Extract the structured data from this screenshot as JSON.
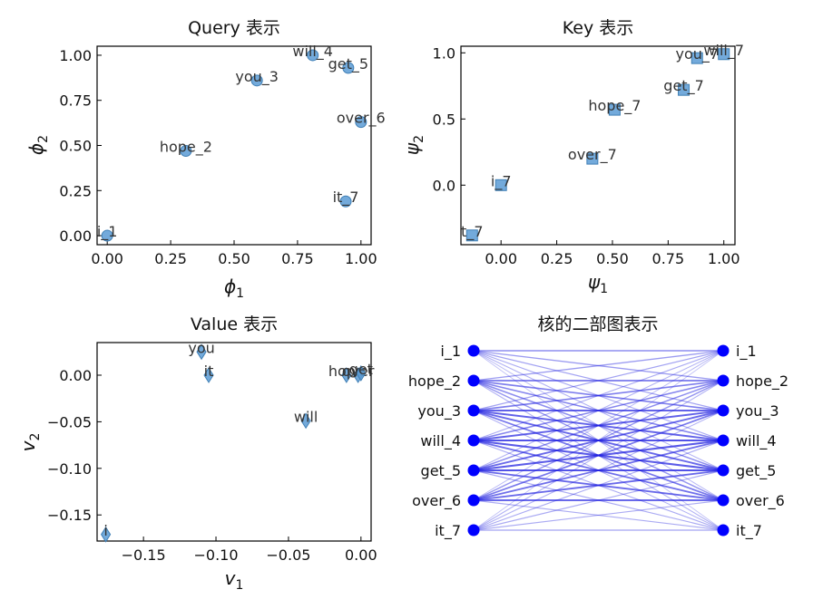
{
  "colors": {
    "marker": "#5b9bd5",
    "marker_edge": "#3f7fb5",
    "node": "#0000ff",
    "edge": "#1f1fe0"
  },
  "chart_data": [
    {
      "type": "scatter",
      "title": "Query 表示",
      "xlabel": "ϕ1",
      "ylabel": "ϕ2",
      "xlim": [
        -0.04,
        1.04
      ],
      "ylim": [
        -0.05,
        1.05
      ],
      "xticks": [
        "0.00",
        "0.25",
        "0.50",
        "0.75",
        "1.00"
      ],
      "xtick_values": [
        0,
        0.25,
        0.5,
        0.75,
        1.0
      ],
      "yticks": [
        "0.00",
        "0.25",
        "0.50",
        "0.75",
        "1.00"
      ],
      "ytick_values": [
        0,
        0.25,
        0.5,
        0.75,
        1.0
      ],
      "marker": "circle",
      "points": [
        {
          "label": "i_1",
          "x": 0.0,
          "y": 0.0
        },
        {
          "label": "hope_2",
          "x": 0.31,
          "y": 0.47
        },
        {
          "label": "you_3",
          "x": 0.59,
          "y": 0.86
        },
        {
          "label": "will_4",
          "x": 0.81,
          "y": 1.0
        },
        {
          "label": "get_5",
          "x": 0.95,
          "y": 0.93
        },
        {
          "label": "over_6",
          "x": 1.0,
          "y": 0.63
        },
        {
          "label": "it_7",
          "x": 0.94,
          "y": 0.19
        }
      ]
    },
    {
      "type": "scatter",
      "title": "Key 表示",
      "xlabel": "ψ1",
      "ylabel": "ψ2",
      "xlim": [
        -0.18,
        1.05
      ],
      "ylim": [
        -0.45,
        1.05
      ],
      "xticks": [
        "0.00",
        "0.25",
        "0.50",
        "0.75",
        "1.00"
      ],
      "xtick_values": [
        0,
        0.25,
        0.5,
        0.75,
        1.0
      ],
      "yticks": [
        "0.0",
        "0.5",
        "1.0"
      ],
      "ytick_values": [
        0,
        0.5,
        1.0
      ],
      "marker": "square",
      "points": [
        {
          "label": "i_7",
          "x": 0.0,
          "y": 0.0
        },
        {
          "label": "t_7",
          "x": -0.13,
          "y": -0.38
        },
        {
          "label": "over_7",
          "x": 0.41,
          "y": 0.2
        },
        {
          "label": "hope_7",
          "x": 0.51,
          "y": 0.57
        },
        {
          "label": "get_7",
          "x": 0.82,
          "y": 0.72
        },
        {
          "label": "you_7",
          "x": 0.88,
          "y": 0.96
        },
        {
          "label": "will_7",
          "x": 1.0,
          "y": 0.99
        }
      ]
    },
    {
      "type": "scatter",
      "title": "Value 表示",
      "xlabel": "v1",
      "ylabel": "v2",
      "xlim": [
        -0.182,
        0.007
      ],
      "ylim": [
        -0.178,
        0.035
      ],
      "xticks": [
        "−0.15",
        "−0.10",
        "−0.05",
        "0.00"
      ],
      "xtick_values": [
        -0.15,
        -0.1,
        -0.05,
        0.0
      ],
      "yticks": [
        "0.00",
        "−0.05",
        "−0.10",
        "−0.15"
      ],
      "ytick_values": [
        0.0,
        -0.05,
        -0.1,
        -0.15
      ],
      "marker": "diamond",
      "points": [
        {
          "label": "i",
          "x": -0.176,
          "y": -0.171
        },
        {
          "label": "you",
          "x": -0.11,
          "y": 0.025
        },
        {
          "label": "it",
          "x": -0.105,
          "y": 0.0
        },
        {
          "label": "will",
          "x": -0.038,
          "y": -0.049
        },
        {
          "label": "hope",
          "x": -0.01,
          "y": 0.0
        },
        {
          "label": "over",
          "x": -0.002,
          "y": 0.0
        },
        {
          "label": "get",
          "x": 0.0,
          "y": 0.002
        }
      ]
    },
    {
      "type": "bipartite",
      "title": "核的二部图表示",
      "left_nodes": [
        "i_1",
        "hope_2",
        "you_3",
        "will_4",
        "get_5",
        "over_6",
        "it_7"
      ],
      "right_nodes": [
        "i_1",
        "hope_2",
        "you_3",
        "will_4",
        "get_5",
        "over_6",
        "it_7"
      ],
      "weights": [
        [
          0.55,
          0.45,
          0.4,
          0.35,
          0.3,
          0.25,
          0.2
        ],
        [
          0.45,
          0.7,
          0.65,
          0.6,
          0.55,
          0.5,
          0.3
        ],
        [
          0.4,
          0.65,
          0.85,
          0.85,
          0.8,
          0.7,
          0.3
        ],
        [
          0.35,
          0.6,
          0.85,
          0.95,
          0.9,
          0.75,
          0.35
        ],
        [
          0.3,
          0.55,
          0.8,
          0.9,
          0.95,
          0.8,
          0.35
        ],
        [
          0.25,
          0.5,
          0.7,
          0.75,
          0.8,
          0.8,
          0.35
        ],
        [
          0.2,
          0.3,
          0.3,
          0.35,
          0.35,
          0.35,
          0.4
        ]
      ]
    }
  ]
}
